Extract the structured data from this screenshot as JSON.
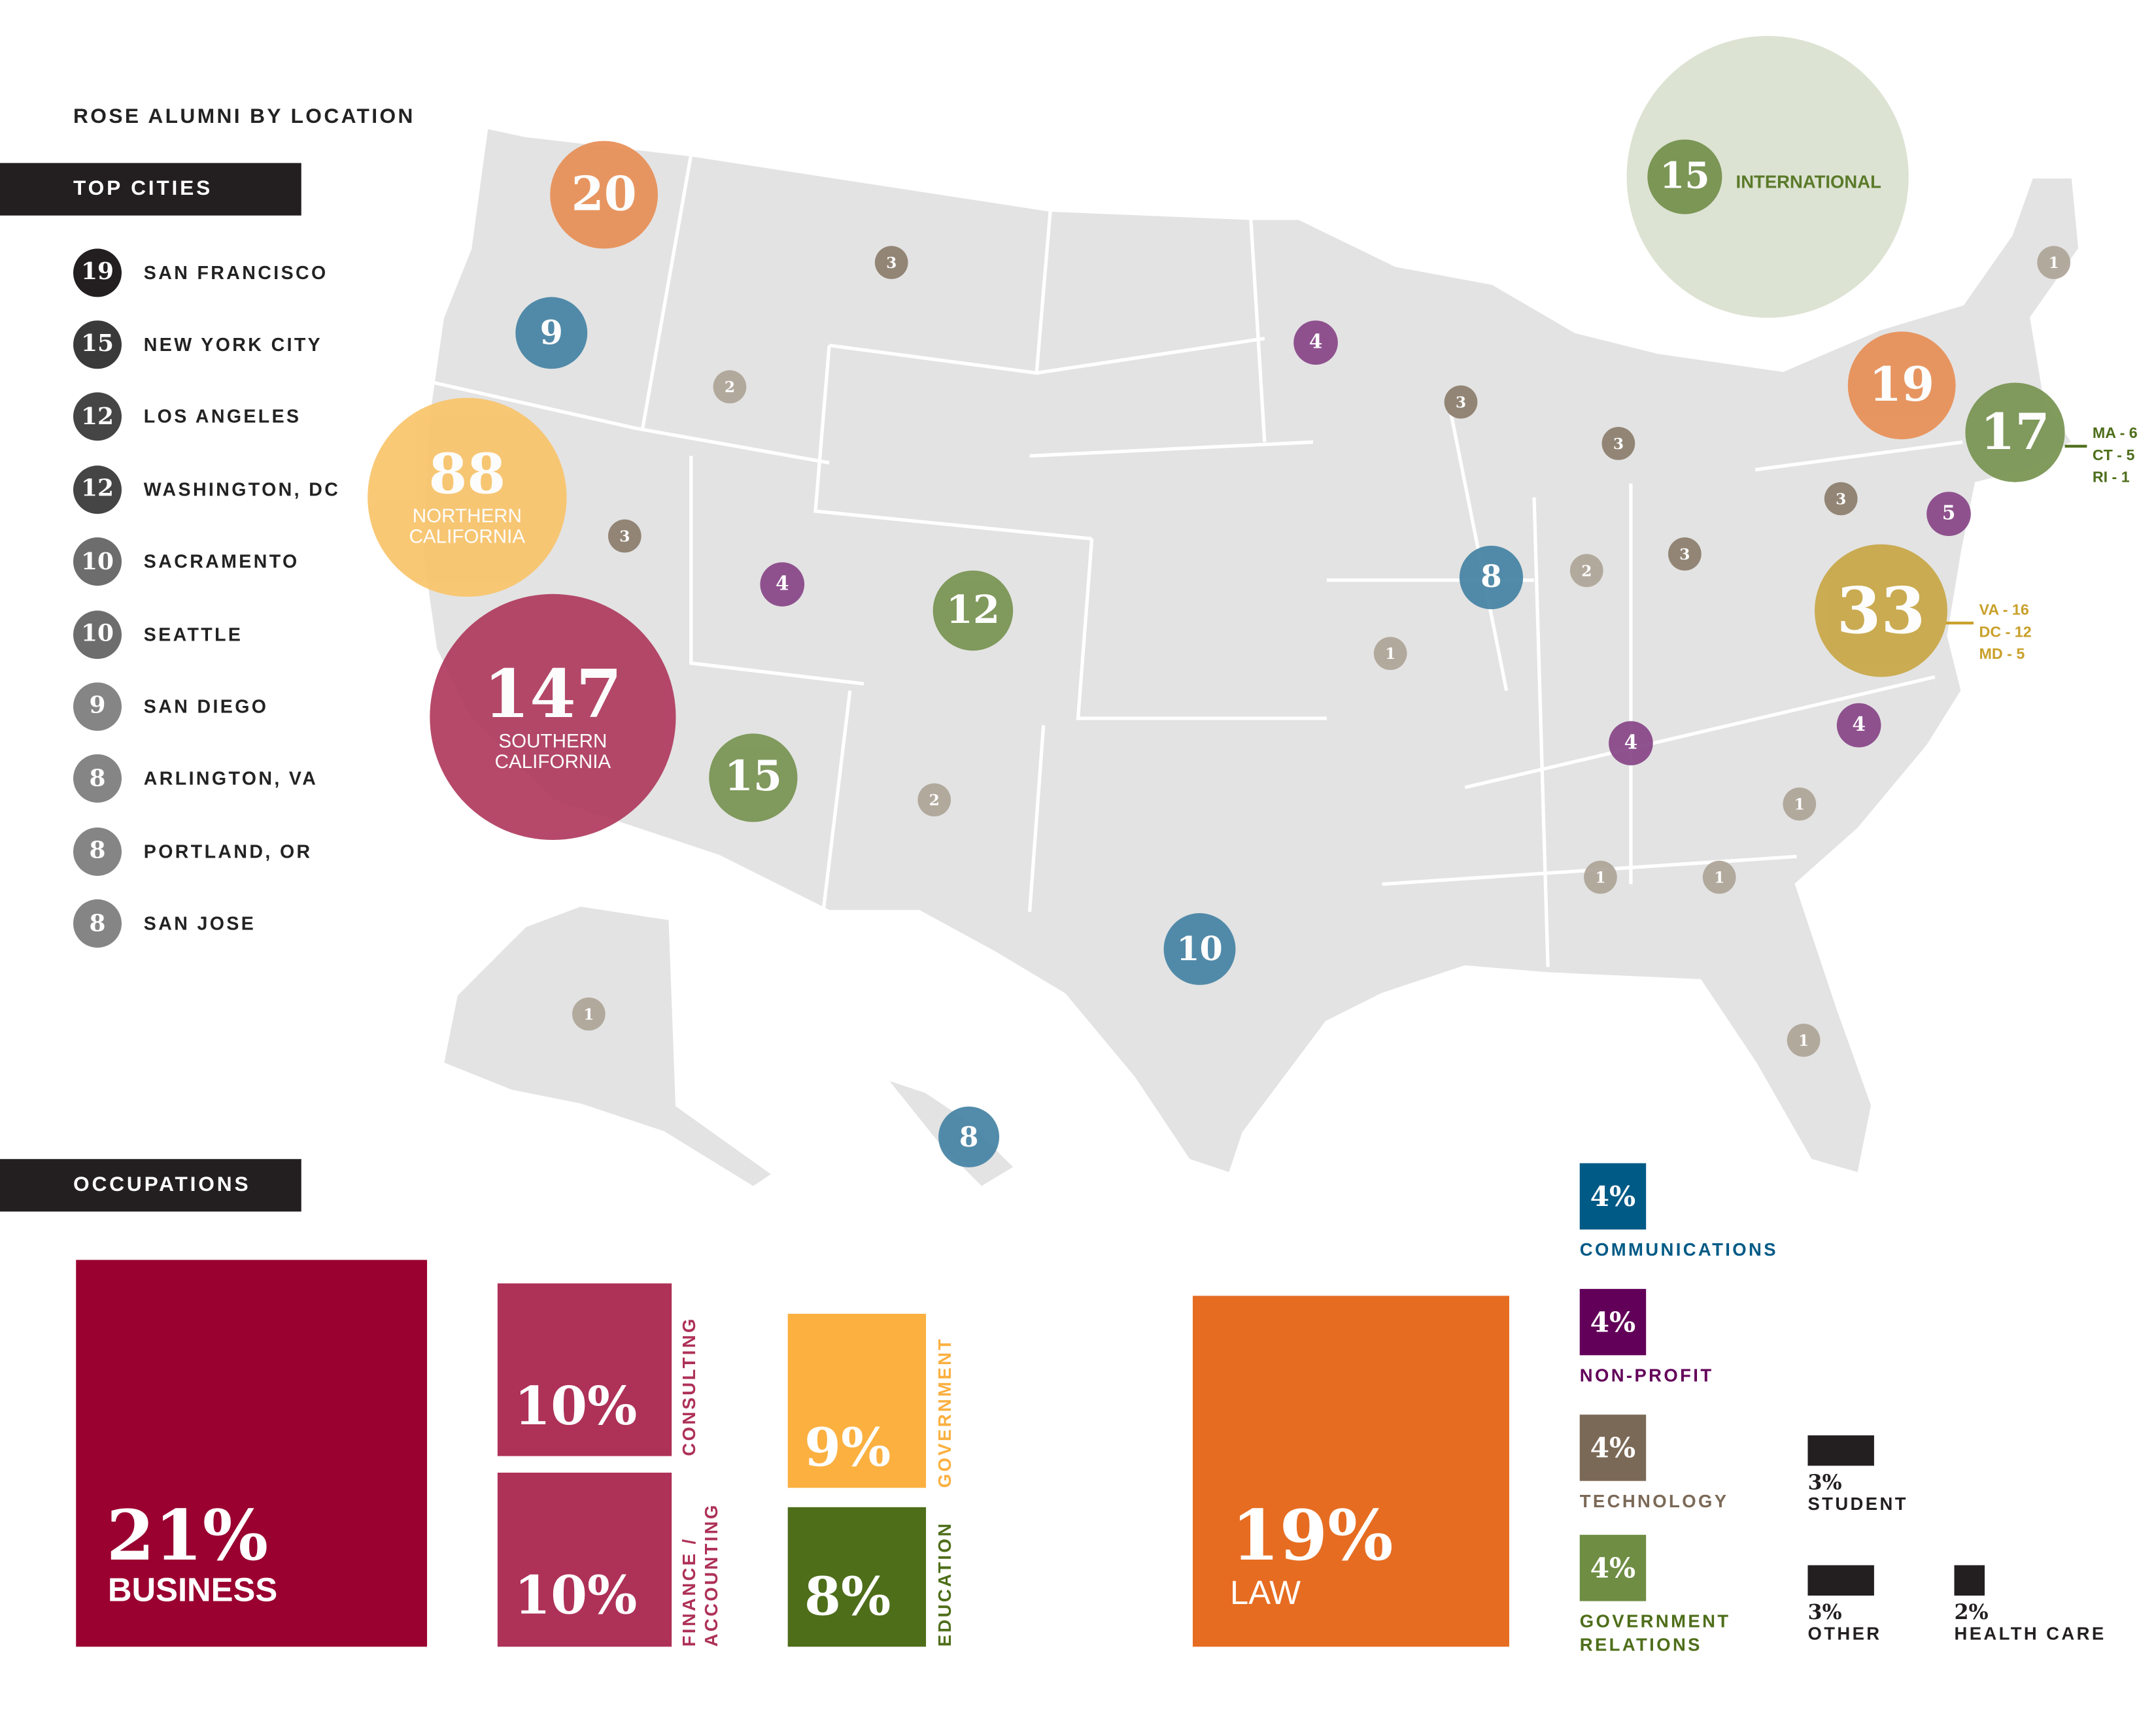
{
  "header": {
    "title": "ROSE ALUMNI BY LOCATION",
    "top_cities_label": "TOP CITIES",
    "occupations_label": "OCCUPATIONS"
  },
  "colors": {
    "dark": "#231f20",
    "orange": "#e8915a",
    "blue": "#4a86a6",
    "yellow": "#f9c46a",
    "crimson": "#b03a5e",
    "green": "#7b9655",
    "purple": "#8a4a8a",
    "gold": "#c9a94a",
    "brown": "#8e8070",
    "lightbrown": "#b0a69a",
    "map": "#e3e3e3"
  },
  "top_cities": [
    {
      "count": "19",
      "name": "SAN FRANCISCO"
    },
    {
      "count": "15",
      "name": "NEW YORK CITY"
    },
    {
      "count": "12",
      "name": "LOS ANGELES"
    },
    {
      "count": "12",
      "name": "WASHINGTON, DC"
    },
    {
      "count": "10",
      "name": "SACRAMENTO"
    },
    {
      "count": "10",
      "name": "SEATTLE"
    },
    {
      "count": "9",
      "name": "SAN DIEGO"
    },
    {
      "count": "8",
      "name": "ARLINGTON, VA"
    },
    {
      "count": "8",
      "name": "PORTLAND, OR"
    },
    {
      "count": "8",
      "name": "SAN JOSE"
    }
  ],
  "map_bubbles": [
    {
      "region": "WA",
      "value": "20",
      "color": "orange"
    },
    {
      "region": "OR",
      "value": "9",
      "color": "blue"
    },
    {
      "region": "NORTHERN CALIFORNIA",
      "value": "88",
      "label": "NORTHERN CALIFORNIA",
      "color": "yellow"
    },
    {
      "region": "SOUTHERN CALIFORNIA",
      "value": "147",
      "label": "SOUTHERN CALIFORNIA",
      "color": "crimson"
    },
    {
      "region": "AZ",
      "value": "15",
      "color": "green"
    },
    {
      "region": "CO",
      "value": "12",
      "color": "green"
    },
    {
      "region": "TX",
      "value": "10",
      "color": "blue"
    },
    {
      "region": "HI",
      "value": "8",
      "color": "blue"
    },
    {
      "region": "IL",
      "value": "8",
      "color": "blue"
    },
    {
      "region": "NY",
      "value": "19",
      "color": "orange"
    },
    {
      "region": "New England",
      "value": "17",
      "color": "green",
      "breakdown": [
        "MA - 6",
        "CT - 5",
        "RI - 1"
      ]
    },
    {
      "region": "NJ",
      "value": "5",
      "color": "purple"
    },
    {
      "region": "VA/DC/MD",
      "value": "33",
      "color": "gold",
      "breakdown": [
        "VA - 16",
        "DC - 12",
        "MD - 5"
      ]
    },
    {
      "region": "MN",
      "value": "4",
      "color": "purple"
    },
    {
      "region": "UT",
      "value": "4",
      "color": "purple"
    },
    {
      "region": "TN",
      "value": "4",
      "color": "purple"
    },
    {
      "region": "NC",
      "value": "4",
      "color": "purple"
    },
    {
      "region": "MT",
      "value": "3",
      "color": "brown"
    },
    {
      "region": "NV",
      "value": "3",
      "color": "brown"
    },
    {
      "region": "WI",
      "value": "3",
      "color": "brown"
    },
    {
      "region": "MI",
      "value": "3",
      "color": "brown"
    },
    {
      "region": "OH",
      "value": "3",
      "color": "brown"
    },
    {
      "region": "PA",
      "value": "3",
      "color": "brown"
    },
    {
      "region": "ID",
      "value": "2",
      "color": "lightbrown"
    },
    {
      "region": "IN",
      "value": "2",
      "color": "lightbrown"
    },
    {
      "region": "NM",
      "value": "2",
      "color": "lightbrown"
    },
    {
      "region": "ME",
      "value": "1",
      "color": "lightbrown"
    },
    {
      "region": "MO",
      "value": "1",
      "color": "lightbrown"
    },
    {
      "region": "SC",
      "value": "1",
      "color": "lightbrown"
    },
    {
      "region": "AL",
      "value": "1",
      "color": "lightbrown"
    },
    {
      "region": "GA",
      "value": "1",
      "color": "lightbrown"
    },
    {
      "region": "FL",
      "value": "1",
      "color": "lightbrown"
    },
    {
      "region": "AK",
      "value": "1",
      "color": "lightbrown"
    }
  ],
  "international": {
    "value": "15",
    "label": "INTERNATIONAL"
  },
  "occupations": [
    {
      "pct": "21%",
      "label": "BUSINESS",
      "color": "#9a0030"
    },
    {
      "pct": "10%",
      "label": "CONSULTING",
      "color": "#ae3157"
    },
    {
      "pct": "10%",
      "label": "FINANCE / ACCOUNTING",
      "color": "#ae3157"
    },
    {
      "pct": "9%",
      "label": "GOVERNMENT",
      "color": "#fbb040"
    },
    {
      "pct": "8%",
      "label": "EDUCATION",
      "color": "#4e6e1a"
    },
    {
      "pct": "19%",
      "label": "LAW",
      "color": "#e66c21"
    },
    {
      "pct": "4%",
      "label": "COMMUNICATIONS",
      "color": "#005a86"
    },
    {
      "pct": "4%",
      "label": "NON-PROFIT",
      "color": "#620059"
    },
    {
      "pct": "4%",
      "label": "TECHNOLOGY",
      "color": "#7b6957"
    },
    {
      "pct": "4%",
      "label": "GOVERNMENT RELATIONS",
      "color": "#6f8d43"
    },
    {
      "pct": "3%",
      "label": "STUDENT",
      "color": "#231f20"
    },
    {
      "pct": "3%",
      "label": "OTHER",
      "color": "#231f20"
    },
    {
      "pct": "2%",
      "label": "HEALTH CARE",
      "color": "#231f20"
    }
  ]
}
